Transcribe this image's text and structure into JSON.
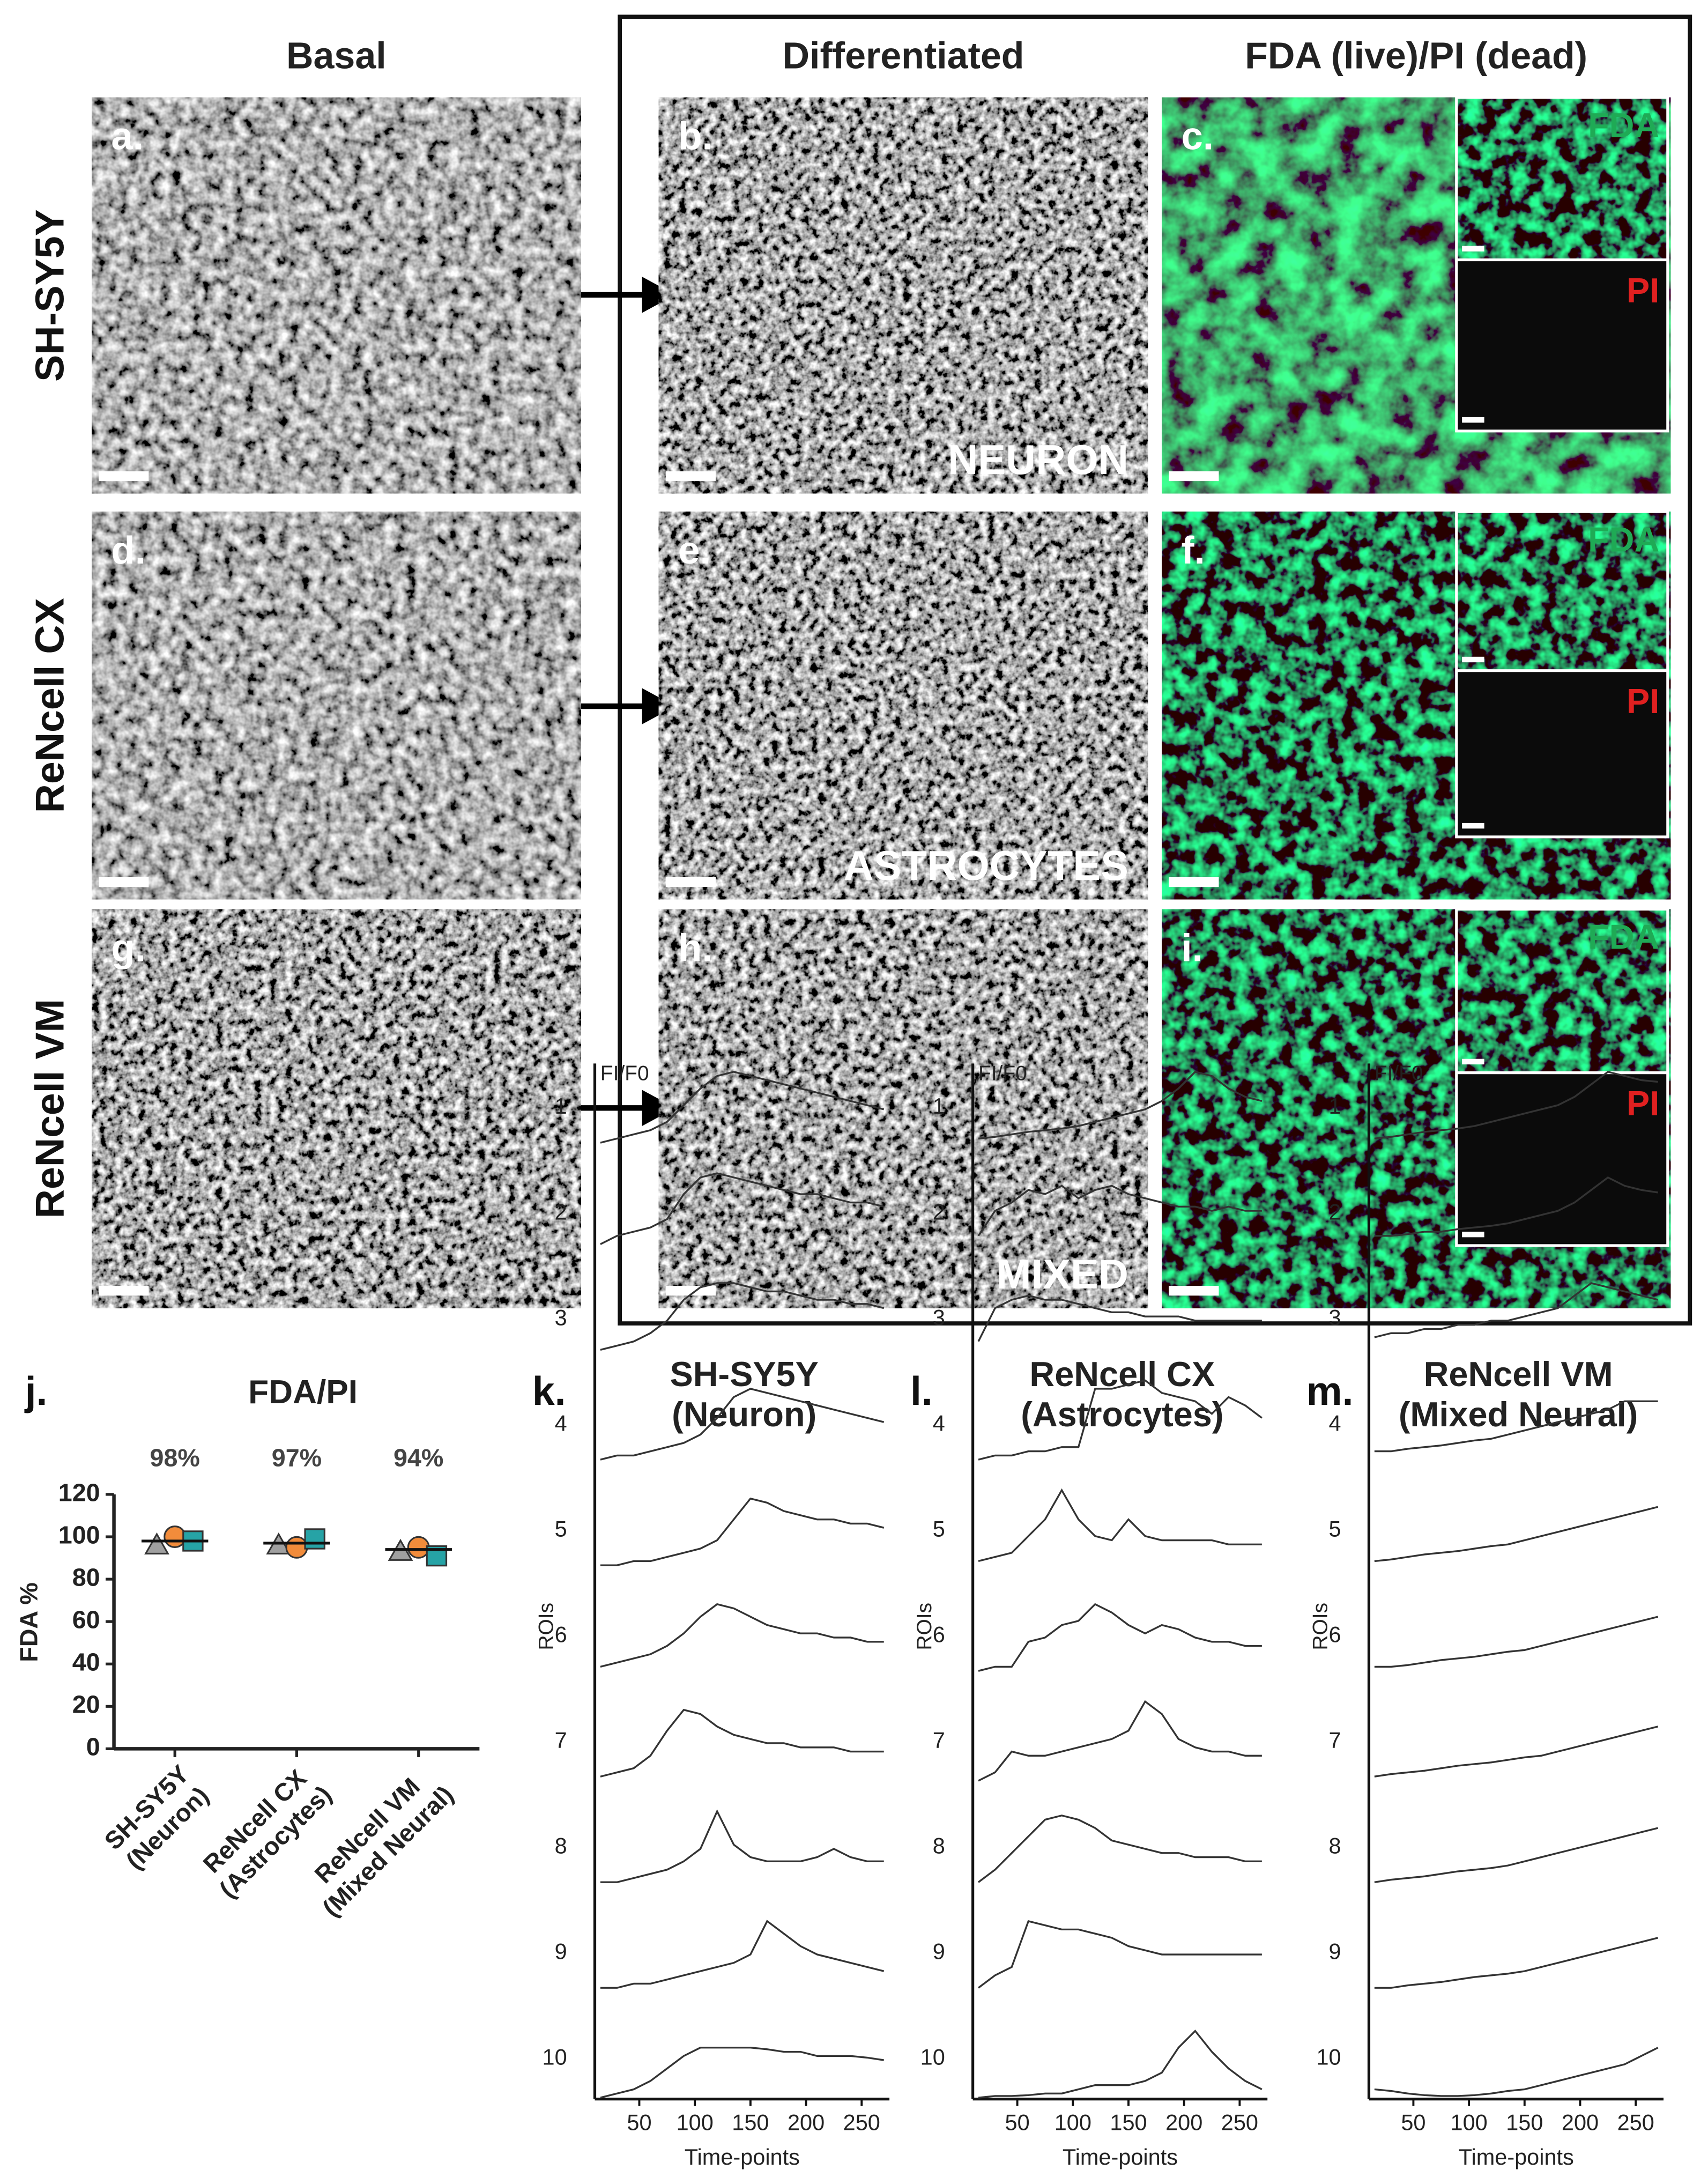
{
  "column_headers": [
    "Basal",
    "Differentiated",
    "FDA (live)/PI (dead)"
  ],
  "row_labels": [
    "SH-SY5Y",
    "ReNcell CX",
    "ReNcell VM"
  ],
  "panels": [
    {
      "label": "a."
    },
    {
      "label": "b.",
      "cell_type": "NEURON"
    },
    {
      "label": "c.",
      "insets": [
        "FDA",
        "PI"
      ]
    },
    {
      "label": "d."
    },
    {
      "label": "e.",
      "cell_type": "ASTROCYTES"
    },
    {
      "label": "f.",
      "insets": [
        "FDA",
        "PI"
      ]
    },
    {
      "label": "g."
    },
    {
      "label": "h.",
      "cell_type": "MIXED"
    },
    {
      "label": "i.",
      "insets": [
        "FDA",
        "PI"
      ]
    }
  ],
  "chart_data": [
    {
      "type": "dot",
      "panel_label": "j.",
      "title": "FDA/PI",
      "ylabel": "FDA %",
      "categories": [
        "SH-SY5Y\n(Neuron)",
        "ReNcell CX\n(Astrocytes)",
        "ReNcell VM\n(Mixed Neural)"
      ],
      "ylim": [
        0,
        120
      ],
      "yticks": [
        0,
        20,
        40,
        60,
        80,
        100,
        120
      ],
      "mean": {
        "values": [
          98,
          97,
          94
        ],
        "value_labels": [
          "98%",
          "97%",
          "94%"
        ]
      },
      "series": [
        {
          "marker": "triangle",
          "color": "#a0a0a0",
          "values": [
            96,
            96,
            93
          ]
        },
        {
          "marker": "circle",
          "color": "#f28c3b",
          "values": [
            100,
            95,
            95
          ]
        },
        {
          "marker": "square",
          "color": "#26a3a6",
          "values": [
            98,
            99,
            91
          ]
        }
      ]
    },
    {
      "type": "line",
      "panel_label": "k.",
      "title": "SH-SY5Y\n(Neuron)",
      "ylabel": "ROIs",
      "y_annotation": "FI/F0",
      "xlabel": "Time-points",
      "x": [
        15,
        30,
        45,
        60,
        75,
        90,
        105,
        120,
        135,
        150,
        165,
        180,
        195,
        210,
        225,
        240,
        255,
        270
      ],
      "xlim": [
        10,
        275
      ],
      "xticks": [
        50,
        100,
        150,
        200,
        250
      ],
      "series": [
        {
          "name": "1",
          "color": "#333333",
          "values": [
            0.05,
            0.1,
            0.15,
            0.2,
            0.3,
            0.5,
            0.7,
            0.85,
            0.9,
            0.85,
            0.8,
            0.75,
            0.7,
            0.65,
            0.6,
            0.55,
            0.5,
            0.45
          ]
        },
        {
          "name": "2",
          "color": "#333333",
          "values": [
            0.1,
            0.2,
            0.25,
            0.3,
            0.4,
            0.7,
            0.9,
            0.95,
            0.9,
            0.85,
            0.8,
            0.75,
            0.7,
            0.7,
            0.65,
            0.6,
            0.6,
            0.55
          ]
        },
        {
          "name": "3",
          "color": "#333333",
          "values": [
            0.1,
            0.15,
            0.2,
            0.3,
            0.45,
            0.7,
            0.85,
            0.9,
            0.9,
            0.85,
            0.8,
            0.8,
            0.75,
            0.7,
            0.7,
            0.65,
            0.65,
            0.6
          ]
        },
        {
          "name": "4",
          "color": "#333333",
          "values": [
            0.05,
            0.1,
            0.1,
            0.15,
            0.2,
            0.25,
            0.35,
            0.55,
            0.8,
            0.9,
            0.85,
            0.8,
            0.75,
            0.7,
            0.65,
            0.6,
            0.55,
            0.5
          ]
        },
        {
          "name": "5",
          "color": "#333333",
          "values": [
            0.05,
            0.05,
            0.1,
            0.1,
            0.15,
            0.2,
            0.25,
            0.35,
            0.6,
            0.85,
            0.8,
            0.7,
            0.65,
            0.6,
            0.6,
            0.55,
            0.55,
            0.5
          ]
        },
        {
          "name": "6",
          "color": "#333333",
          "values": [
            0.1,
            0.15,
            0.2,
            0.25,
            0.35,
            0.5,
            0.7,
            0.85,
            0.8,
            0.7,
            0.6,
            0.55,
            0.5,
            0.5,
            0.45,
            0.45,
            0.4,
            0.4
          ]
        },
        {
          "name": "7",
          "color": "#333333",
          "values": [
            0.05,
            0.1,
            0.15,
            0.3,
            0.6,
            0.85,
            0.8,
            0.65,
            0.55,
            0.5,
            0.45,
            0.45,
            0.4,
            0.4,
            0.4,
            0.35,
            0.35,
            0.35
          ]
        },
        {
          "name": "8",
          "color": "#333333",
          "values": [
            0.05,
            0.05,
            0.1,
            0.15,
            0.2,
            0.3,
            0.45,
            0.9,
            0.5,
            0.35,
            0.3,
            0.3,
            0.3,
            0.35,
            0.45,
            0.35,
            0.3,
            0.3
          ]
        },
        {
          "name": "9",
          "color": "#333333",
          "values": [
            0.05,
            0.05,
            0.1,
            0.1,
            0.15,
            0.2,
            0.25,
            0.3,
            0.35,
            0.45,
            0.85,
            0.7,
            0.55,
            0.45,
            0.4,
            0.35,
            0.3,
            0.25
          ]
        },
        {
          "name": "10",
          "color": "#333333",
          "values": [
            0.0,
            0.05,
            0.1,
            0.2,
            0.35,
            0.5,
            0.6,
            0.6,
            0.6,
            0.6,
            0.58,
            0.55,
            0.55,
            0.5,
            0.5,
            0.5,
            0.48,
            0.45
          ]
        }
      ]
    },
    {
      "type": "line",
      "panel_label": "l.",
      "title": "ReNcell CX\n(Astrocytes)",
      "ylabel": "ROIs",
      "y_annotation": "FI/F0",
      "xlabel": "Time-points",
      "x": [
        15,
        30,
        45,
        60,
        75,
        90,
        105,
        120,
        135,
        150,
        165,
        180,
        195,
        210,
        225,
        240,
        255,
        270
      ],
      "xlim": [
        10,
        275
      ],
      "xticks": [
        50,
        100,
        150,
        200,
        250
      ],
      "series": [
        {
          "name": "1",
          "color": "#333333",
          "values": [
            0.1,
            0.12,
            0.15,
            0.18,
            0.2,
            0.22,
            0.25,
            0.3,
            0.35,
            0.4,
            0.45,
            0.55,
            0.7,
            0.9,
            0.85,
            0.7,
            0.6,
            0.55
          ]
        },
        {
          "name": "2",
          "color": "#333333",
          "values": [
            0.2,
            0.5,
            0.6,
            0.75,
            0.7,
            0.8,
            0.65,
            0.75,
            0.8,
            0.7,
            0.65,
            0.6,
            0.55,
            0.55,
            0.5,
            0.55,
            0.5,
            0.5
          ]
        },
        {
          "name": "3",
          "color": "#333333",
          "values": [
            0.2,
            0.6,
            0.7,
            0.75,
            0.7,
            0.7,
            0.65,
            0.6,
            0.55,
            0.55,
            0.5,
            0.5,
            0.5,
            0.45,
            0.45,
            0.45,
            0.45,
            0.45
          ]
        },
        {
          "name": "4",
          "color": "#333333",
          "values": [
            0.05,
            0.1,
            0.1,
            0.15,
            0.15,
            0.2,
            0.2,
            0.9,
            0.9,
            0.95,
            1.0,
            0.85,
            0.8,
            0.75,
            0.6,
            0.8,
            0.7,
            0.55
          ]
        },
        {
          "name": "5",
          "color": "#333333",
          "values": [
            0.1,
            0.15,
            0.2,
            0.4,
            0.6,
            0.95,
            0.6,
            0.4,
            0.35,
            0.6,
            0.4,
            0.35,
            0.35,
            0.35,
            0.35,
            0.3,
            0.3,
            0.3
          ]
        },
        {
          "name": "6",
          "color": "#333333",
          "values": [
            0.05,
            0.1,
            0.1,
            0.4,
            0.45,
            0.6,
            0.65,
            0.85,
            0.75,
            0.6,
            0.5,
            0.6,
            0.55,
            0.45,
            0.4,
            0.4,
            0.35,
            0.35
          ]
        },
        {
          "name": "7",
          "color": "#333333",
          "values": [
            0.0,
            0.1,
            0.35,
            0.3,
            0.3,
            0.35,
            0.4,
            0.45,
            0.5,
            0.6,
            0.95,
            0.8,
            0.5,
            0.4,
            0.35,
            0.35,
            0.3,
            0.3
          ]
        },
        {
          "name": "8",
          "color": "#333333",
          "values": [
            0.05,
            0.2,
            0.4,
            0.6,
            0.8,
            0.85,
            0.8,
            0.7,
            0.55,
            0.5,
            0.45,
            0.4,
            0.4,
            0.35,
            0.35,
            0.35,
            0.3,
            0.3
          ]
        },
        {
          "name": "9",
          "color": "#333333",
          "values": [
            0.05,
            0.2,
            0.3,
            0.85,
            0.8,
            0.75,
            0.75,
            0.7,
            0.65,
            0.55,
            0.5,
            0.45,
            0.45,
            0.45,
            0.45,
            0.45,
            0.45,
            0.45
          ]
        },
        {
          "name": "10",
          "color": "#333333",
          "values": [
            0.0,
            0.02,
            0.02,
            0.03,
            0.05,
            0.05,
            0.1,
            0.15,
            0.15,
            0.15,
            0.2,
            0.3,
            0.6,
            0.8,
            0.55,
            0.35,
            0.2,
            0.1
          ]
        }
      ]
    },
    {
      "type": "line",
      "panel_label": "m.",
      "title": "ReNcell VM\n(Mixed Neural)",
      "ylabel": "ROIs",
      "y_annotation": "FI/F0",
      "xlabel": "Time-points",
      "x": [
        15,
        30,
        45,
        60,
        75,
        90,
        105,
        120,
        135,
        150,
        165,
        180,
        195,
        210,
        225,
        240,
        255,
        270
      ],
      "xlim": [
        10,
        275
      ],
      "xticks": [
        50,
        100,
        150,
        200,
        250
      ],
      "series": [
        {
          "name": "1",
          "color": "#333333",
          "values": [
            0.1,
            0.12,
            0.15,
            0.18,
            0.2,
            0.22,
            0.25,
            0.3,
            0.35,
            0.4,
            0.45,
            0.5,
            0.6,
            0.75,
            0.9,
            0.85,
            0.8,
            0.78
          ]
        },
        {
          "name": "2",
          "color": "#333333",
          "values": [
            0.2,
            0.2,
            0.22,
            0.25,
            0.25,
            0.28,
            0.3,
            0.32,
            0.35,
            0.4,
            0.45,
            0.5,
            0.6,
            0.75,
            0.9,
            0.8,
            0.75,
            0.72
          ]
        },
        {
          "name": "3",
          "color": "#333333",
          "values": [
            0.25,
            0.3,
            0.3,
            0.35,
            0.35,
            0.4,
            0.4,
            0.45,
            0.45,
            0.5,
            0.55,
            0.6,
            0.75,
            0.9,
            0.85,
            0.8,
            0.75,
            0.7
          ]
        },
        {
          "name": "4",
          "color": "#333333",
          "values": [
            0.15,
            0.15,
            0.18,
            0.2,
            0.22,
            0.25,
            0.28,
            0.3,
            0.35,
            0.4,
            0.45,
            0.5,
            0.55,
            0.6,
            0.65,
            0.75,
            0.75,
            0.75
          ]
        },
        {
          "name": "5",
          "color": "#333333",
          "values": [
            0.1,
            0.12,
            0.15,
            0.18,
            0.2,
            0.22,
            0.25,
            0.28,
            0.3,
            0.35,
            0.4,
            0.45,
            0.5,
            0.55,
            0.6,
            0.65,
            0.7,
            0.75
          ]
        },
        {
          "name": "6",
          "color": "#333333",
          "values": [
            0.1,
            0.1,
            0.12,
            0.15,
            0.18,
            0.2,
            0.22,
            0.25,
            0.28,
            0.3,
            0.35,
            0.4,
            0.45,
            0.5,
            0.55,
            0.6,
            0.65,
            0.7
          ]
        },
        {
          "name": "7",
          "color": "#333333",
          "values": [
            0.05,
            0.08,
            0.1,
            0.12,
            0.15,
            0.18,
            0.2,
            0.22,
            0.25,
            0.28,
            0.3,
            0.35,
            0.4,
            0.45,
            0.5,
            0.55,
            0.6,
            0.65
          ]
        },
        {
          "name": "8",
          "color": "#333333",
          "values": [
            0.05,
            0.08,
            0.1,
            0.12,
            0.15,
            0.18,
            0.2,
            0.22,
            0.25,
            0.3,
            0.35,
            0.4,
            0.45,
            0.5,
            0.55,
            0.6,
            0.65,
            0.7
          ]
        },
        {
          "name": "9",
          "color": "#333333",
          "values": [
            0.05,
            0.05,
            0.08,
            0.1,
            0.12,
            0.15,
            0.18,
            0.2,
            0.22,
            0.25,
            0.3,
            0.35,
            0.4,
            0.45,
            0.5,
            0.55,
            0.6,
            0.65
          ]
        },
        {
          "name": "10",
          "color": "#333333",
          "values": [
            0.1,
            0.08,
            0.05,
            0.03,
            0.02,
            0.02,
            0.03,
            0.05,
            0.08,
            0.1,
            0.15,
            0.2,
            0.25,
            0.3,
            0.35,
            0.4,
            0.5,
            0.6
          ]
        }
      ]
    }
  ]
}
